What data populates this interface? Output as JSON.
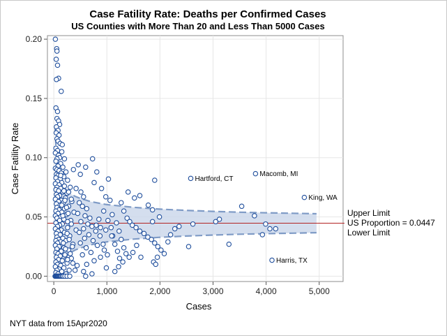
{
  "chart_data": {
    "type": "scatter",
    "title": "Case Fatility Rate: Deaths per Confirmed Cases",
    "subtitle": "US Counties with More Than 20 and Less Than 5000 Cases",
    "xlabel": "Cases",
    "ylabel": "Case Fatility Rate",
    "xlim": [
      -120,
      5450
    ],
    "ylim": [
      -0.0045,
      0.203
    ],
    "x_ticks": [
      0,
      1000,
      2000,
      3000,
      4000,
      5000
    ],
    "x_tick_labels": [
      "0",
      "1,000",
      "2,000",
      "3,000",
      "4,000",
      "5,000"
    ],
    "y_ticks": [
      0.0,
      0.05,
      0.1,
      0.15,
      0.2
    ],
    "y_tick_labels": [
      "0.00",
      "0.05",
      "0.10",
      "0.15",
      "0.20"
    ],
    "grid": true,
    "reference_line": {
      "y": 0.0447,
      "label": "US Proportion = 0.0447",
      "color": "#b22222"
    },
    "band_labels": {
      "upper": "Upper Limit",
      "lower": "Lower Limit"
    },
    "band_color": "#c9d6ea",
    "marker_color": "#1f4e9c",
    "funnel": {
      "x": [
        25,
        50,
        75,
        100,
        150,
        200,
        300,
        400,
        500,
        700,
        1000,
        1500,
        2000,
        2500,
        3000,
        3500,
        4000,
        4500,
        4950
      ],
      "upper": [
        0.1252,
        0.1014,
        0.0925,
        0.0853,
        0.0784,
        0.0746,
        0.0699,
        0.0674,
        0.0656,
        0.0629,
        0.0604,
        0.0581,
        0.0566,
        0.0555,
        0.0547,
        0.054,
        0.0535,
        0.0531,
        0.0527
      ],
      "lower": [
        0.0,
        0.0,
        0.0,
        0.004,
        0.011,
        0.0148,
        0.0195,
        0.022,
        0.0238,
        0.0265,
        0.029,
        0.0313,
        0.0328,
        0.0339,
        0.0347,
        0.0354,
        0.0359,
        0.0363,
        0.0367
      ]
    },
    "labeled_points": [
      {
        "name": "Hartford, CT",
        "x": 2580,
        "y": 0.0825
      },
      {
        "name": "Macomb, MI",
        "x": 3800,
        "y": 0.0865
      },
      {
        "name": "King, WA",
        "x": 4720,
        "y": 0.0665
      },
      {
        "name": "Harris, TX",
        "x": 4110,
        "y": 0.0135
      }
    ],
    "points": [
      [
        30,
        0.2
      ],
      [
        55,
        0.192
      ],
      [
        60,
        0.19
      ],
      [
        45,
        0.183
      ],
      [
        70,
        0.178
      ],
      [
        90,
        0.167
      ],
      [
        50,
        0.166
      ],
      [
        140,
        0.156
      ],
      [
        40,
        0.142
      ],
      [
        70,
        0.139
      ],
      [
        60,
        0.133
      ],
      [
        90,
        0.131
      ],
      [
        110,
        0.128
      ],
      [
        50,
        0.126
      ],
      [
        80,
        0.123
      ],
      [
        45,
        0.121
      ],
      [
        100,
        0.119
      ],
      [
        60,
        0.116
      ],
      [
        80,
        0.114
      ],
      [
        120,
        0.112
      ],
      [
        160,
        0.111
      ],
      [
        40,
        0.108
      ],
      [
        70,
        0.106
      ],
      [
        150,
        0.105
      ],
      [
        30,
        0.104
      ],
      [
        90,
        0.102
      ],
      [
        110,
        0.1
      ],
      [
        60,
        0.099
      ],
      [
        200,
        0.099
      ],
      [
        40,
        0.097
      ],
      [
        130,
        0.095
      ],
      [
        80,
        0.093
      ],
      [
        170,
        0.092
      ],
      [
        30,
        0.091
      ],
      [
        60,
        0.09
      ],
      [
        100,
        0.089
      ],
      [
        230,
        0.088
      ],
      [
        140,
        0.087
      ],
      [
        50,
        0.086
      ],
      [
        80,
        0.085
      ],
      [
        190,
        0.084
      ],
      [
        40,
        0.083
      ],
      [
        120,
        0.082
      ],
      [
        260,
        0.081
      ],
      [
        70,
        0.08
      ],
      [
        150,
        0.079
      ],
      [
        30,
        0.078
      ],
      [
        100,
        0.077
      ],
      [
        200,
        0.076
      ],
      [
        60,
        0.075
      ],
      [
        310,
        0.075
      ],
      [
        130,
        0.074
      ],
      [
        40,
        0.073
      ],
      [
        90,
        0.072
      ],
      [
        170,
        0.071
      ],
      [
        250,
        0.07
      ],
      [
        50,
        0.069
      ],
      [
        110,
        0.068
      ],
      [
        70,
        0.067
      ],
      [
        220,
        0.066
      ],
      [
        30,
        0.065
      ],
      [
        140,
        0.064
      ],
      [
        90,
        0.063
      ],
      [
        340,
        0.063
      ],
      [
        180,
        0.062
      ],
      [
        50,
        0.061
      ],
      [
        120,
        0.06
      ],
      [
        280,
        0.059
      ],
      [
        60,
        0.058
      ],
      [
        200,
        0.057
      ],
      [
        100,
        0.056
      ],
      [
        40,
        0.055
      ],
      [
        150,
        0.054
      ],
      [
        380,
        0.054
      ],
      [
        80,
        0.053
      ],
      [
        240,
        0.052
      ],
      [
        30,
        0.051
      ],
      [
        130,
        0.05
      ],
      [
        60,
        0.049
      ],
      [
        190,
        0.048
      ],
      [
        320,
        0.047
      ],
      [
        90,
        0.046
      ],
      [
        40,
        0.045
      ],
      [
        160,
        0.044
      ],
      [
        110,
        0.043
      ],
      [
        70,
        0.042
      ],
      [
        260,
        0.041
      ],
      [
        30,
        0.04
      ],
      [
        140,
        0.039
      ],
      [
        420,
        0.039
      ],
      [
        80,
        0.038
      ],
      [
        200,
        0.037
      ],
      [
        50,
        0.036
      ],
      [
        120,
        0.035
      ],
      [
        300,
        0.034
      ],
      [
        60,
        0.033
      ],
      [
        170,
        0.032
      ],
      [
        90,
        0.031
      ],
      [
        40,
        0.03
      ],
      [
        230,
        0.03
      ],
      [
        130,
        0.029
      ],
      [
        70,
        0.028
      ],
      [
        360,
        0.027
      ],
      [
        30,
        0.026
      ],
      [
        100,
        0.025
      ],
      [
        190,
        0.024
      ],
      [
        60,
        0.023
      ],
      [
        280,
        0.022
      ],
      [
        140,
        0.021
      ],
      [
        40,
        0.02
      ],
      [
        80,
        0.019
      ],
      [
        210,
        0.018
      ],
      [
        120,
        0.017
      ],
      [
        50,
        0.016
      ],
      [
        330,
        0.015
      ],
      [
        90,
        0.014
      ],
      [
        160,
        0.013
      ],
      [
        40,
        0.012
      ],
      [
        250,
        0.011
      ],
      [
        70,
        0.01
      ],
      [
        130,
        0.009
      ],
      [
        30,
        0.008
      ],
      [
        190,
        0.007
      ],
      [
        100,
        0.006
      ],
      [
        60,
        0.005
      ],
      [
        400,
        0.005
      ],
      [
        150,
        0.004
      ],
      [
        40,
        0.003
      ],
      [
        80,
        0.002
      ],
      [
        230,
        0.002
      ],
      [
        25,
        0.0
      ],
      [
        35,
        0.0
      ],
      [
        45,
        0.0
      ],
      [
        55,
        0.0
      ],
      [
        65,
        0.0
      ],
      [
        75,
        0.0
      ],
      [
        85,
        0.0
      ],
      [
        95,
        0.0
      ],
      [
        110,
        0.0
      ],
      [
        125,
        0.0
      ],
      [
        140,
        0.0
      ],
      [
        160,
        0.0
      ],
      [
        180,
        0.0
      ],
      [
        210,
        0.0
      ],
      [
        250,
        0.0
      ],
      [
        300,
        0.0
      ],
      [
        130,
        0.085
      ],
      [
        190,
        0.072
      ],
      [
        210,
        0.064
      ],
      [
        240,
        0.058
      ],
      [
        270,
        0.053
      ],
      [
        150,
        0.06
      ],
      [
        170,
        0.051
      ],
      [
        110,
        0.047
      ],
      [
        260,
        0.046
      ],
      [
        330,
        0.044
      ],
      [
        250,
        0.036
      ],
      [
        290,
        0.031
      ],
      [
        180,
        0.028
      ],
      [
        350,
        0.025
      ],
      [
        220,
        0.023
      ],
      [
        310,
        0.019
      ],
      [
        260,
        0.014
      ],
      [
        360,
        0.011
      ],
      [
        440,
        0.009
      ],
      [
        290,
        0.005
      ],
      [
        330,
        0.065
      ],
      [
        280,
        0.071
      ],
      [
        460,
        0.094
      ],
      [
        370,
        0.09
      ],
      [
        420,
        0.074
      ],
      [
        510,
        0.071
      ],
      [
        560,
        0.067
      ],
      [
        480,
        0.062
      ],
      [
        540,
        0.059
      ],
      [
        620,
        0.057
      ],
      [
        450,
        0.053
      ],
      [
        590,
        0.051
      ],
      [
        680,
        0.049
      ],
      [
        510,
        0.046
      ],
      [
        640,
        0.044
      ],
      [
        720,
        0.042
      ],
      [
        560,
        0.04
      ],
      [
        790,
        0.038
      ],
      [
        480,
        0.037
      ],
      [
        660,
        0.035
      ],
      [
        870,
        0.034
      ],
      [
        580,
        0.032
      ],
      [
        740,
        0.03
      ],
      [
        500,
        0.028
      ],
      [
        820,
        0.026
      ],
      [
        610,
        0.024
      ],
      [
        950,
        0.022
      ],
      [
        700,
        0.02
      ],
      [
        540,
        0.018
      ],
      [
        880,
        0.016
      ],
      [
        760,
        0.013
      ],
      [
        620,
        0.01
      ],
      [
        990,
        0.007
      ],
      [
        560,
        0.004
      ],
      [
        720,
        0.002
      ],
      [
        600,
        0.0
      ],
      [
        500,
        0.086
      ],
      [
        600,
        0.092
      ],
      [
        730,
        0.099
      ],
      [
        810,
        0.088
      ],
      [
        760,
        0.079
      ],
      [
        900,
        0.074
      ],
      [
        980,
        0.067
      ],
      [
        1060,
        0.064
      ],
      [
        940,
        0.055
      ],
      [
        1100,
        0.052
      ],
      [
        1020,
        0.047
      ],
      [
        1180,
        0.045
      ],
      [
        1080,
        0.041
      ],
      [
        1230,
        0.038
      ],
      [
        1110,
        0.034
      ],
      [
        1270,
        0.031
      ],
      [
        1150,
        0.027
      ],
      [
        1320,
        0.024
      ],
      [
        1200,
        0.021
      ],
      [
        1360,
        0.019
      ],
      [
        1240,
        0.015
      ],
      [
        1300,
        0.012
      ],
      [
        1220,
        0.008
      ],
      [
        1150,
        0.004
      ],
      [
        1270,
        0.062
      ],
      [
        1320,
        0.055
      ],
      [
        1380,
        0.049
      ],
      [
        1430,
        0.046
      ],
      [
        1480,
        0.043
      ],
      [
        1550,
        0.041
      ],
      [
        1620,
        0.038
      ],
      [
        1700,
        0.036
      ],
      [
        1770,
        0.033
      ],
      [
        1840,
        0.031
      ],
      [
        1900,
        0.028
      ],
      [
        1960,
        0.025
      ],
      [
        2020,
        0.022
      ],
      [
        2080,
        0.019
      ],
      [
        1950,
        0.016
      ],
      [
        1880,
        0.012
      ],
      [
        1920,
        0.01
      ],
      [
        1490,
        0.02
      ],
      [
        1560,
        0.026
      ],
      [
        1640,
        0.016
      ],
      [
        1780,
        0.06
      ],
      [
        1860,
        0.056
      ],
      [
        1990,
        0.05
      ],
      [
        1620,
        0.068
      ],
      [
        1520,
        0.066
      ],
      [
        1400,
        0.071
      ],
      [
        1030,
        0.082
      ],
      [
        1900,
        0.081
      ],
      [
        2200,
        0.035
      ],
      [
        2280,
        0.04
      ],
      [
        2360,
        0.042
      ],
      [
        2540,
        0.025
      ],
      [
        2620,
        0.044
      ],
      [
        3050,
        0.046
      ],
      [
        3120,
        0.048
      ],
      [
        3300,
        0.027
      ],
      [
        3540,
        0.059
      ],
      [
        3780,
        0.051
      ],
      [
        3930,
        0.035
      ],
      [
        3990,
        0.044
      ],
      [
        4070,
        0.04
      ],
      [
        4180,
        0.04
      ],
      [
        1860,
        0.046
      ],
      [
        2150,
        0.029
      ],
      [
        1420,
        0.016
      ],
      [
        1090,
        0.034
      ],
      [
        980,
        0.039
      ],
      [
        880,
        0.041
      ],
      [
        800,
        0.043
      ],
      [
        850,
        0.048
      ],
      [
        930,
        0.027
      ],
      [
        1010,
        0.018
      ]
    ]
  },
  "footnote": "NYT data from 15Apr2020"
}
